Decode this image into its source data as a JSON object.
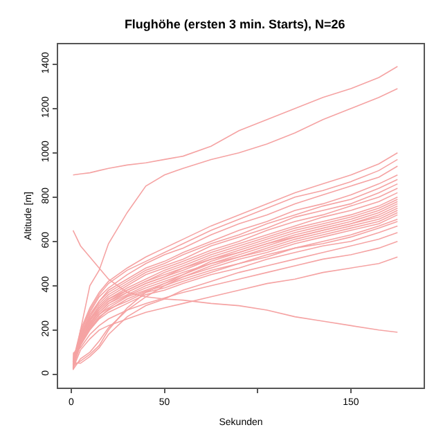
{
  "chart_data": {
    "type": "line",
    "title": "Flughöhe (ersten 3 min. Starts), N=26",
    "xlabel": "Sekunden",
    "ylabel": "Altitude [m]",
    "x": [
      1,
      5,
      10,
      15,
      20,
      30,
      40,
      50,
      60,
      75,
      90,
      105,
      120,
      135,
      150,
      165,
      175
    ],
    "xlim": [
      -7,
      189
    ],
    "xticks": [
      0,
      50,
      {
        "value": 100,
        "label": null
      },
      150
    ],
    "ylim": [
      -60,
      1490
    ],
    "yticks": [
      0,
      200,
      400,
      600,
      800,
      1000,
      1200,
      1400
    ],
    "grid": false,
    "marker": "none",
    "line_style": "solid",
    "series": [
      {
        "color": "#f5a3a3",
        "values": [
          900,
          905,
          910,
          920,
          930,
          945,
          955,
          970,
          985,
          1030,
          1100,
          1150,
          1200,
          1250,
          1290,
          1340,
          1390
        ]
      },
      {
        "color": "#f5a3a3",
        "values": [
          20,
          200,
          400,
          470,
          590,
          730,
          850,
          900,
          930,
          970,
          1000,
          1040,
          1090,
          1150,
          1200,
          1250,
          1290
        ]
      },
      {
        "color": "#f5a3a3",
        "values": [
          650,
          580,
          530,
          480,
          430,
          370,
          350,
          340,
          335,
          320,
          310,
          290,
          260,
          240,
          220,
          200,
          190
        ]
      },
      {
        "color": "#f5a3a3",
        "values": [
          60,
          200,
          300,
          370,
          420,
          480,
          530,
          570,
          610,
          670,
          720,
          770,
          820,
          860,
          900,
          950,
          1000
        ]
      },
      {
        "color": "#f5a3a3",
        "values": [
          45,
          190,
          290,
          360,
          410,
          470,
          510,
          550,
          590,
          650,
          700,
          750,
          800,
          830,
          870,
          920,
          970
        ]
      },
      {
        "color": "#f5a3a3",
        "values": [
          55,
          190,
          280,
          350,
          390,
          450,
          500,
          540,
          570,
          630,
          680,
          720,
          770,
          810,
          850,
          890,
          940
        ]
      },
      {
        "color": "#f5a3a3",
        "values": [
          40,
          180,
          270,
          330,
          380,
          430,
          480,
          510,
          550,
          600,
          650,
          690,
          740,
          770,
          810,
          860,
          900
        ]
      },
      {
        "color": "#f5a3a3",
        "values": [
          35,
          180,
          260,
          330,
          370,
          420,
          470,
          500,
          540,
          590,
          630,
          680,
          720,
          760,
          790,
          840,
          880
        ]
      },
      {
        "color": "#f5a3a3",
        "values": [
          50,
          170,
          260,
          320,
          360,
          410,
          460,
          490,
          520,
          580,
          620,
          660,
          710,
          740,
          770,
          820,
          860
        ]
      },
      {
        "color": "#f5a3a3",
        "values": [
          25,
          170,
          250,
          310,
          350,
          400,
          450,
          480,
          510,
          560,
          600,
          650,
          690,
          720,
          760,
          800,
          840
        ]
      },
      {
        "color": "#f5a3a3",
        "values": [
          65,
          160,
          250,
          300,
          340,
          390,
          430,
          470,
          500,
          550,
          590,
          630,
          670,
          710,
          740,
          780,
          820
        ]
      },
      {
        "color": "#f5a3a3",
        "values": [
          30,
          165,
          240,
          300,
          340,
          380,
          420,
          460,
          490,
          540,
          580,
          620,
          660,
          690,
          720,
          760,
          800
        ]
      },
      {
        "color": "#f5a3a3",
        "values": [
          70,
          160,
          245,
          290,
          330,
          380,
          420,
          450,
          480,
          530,
          570,
          610,
          650,
          680,
          710,
          750,
          790
        ]
      },
      {
        "color": "#f5a3a3",
        "values": [
          28,
          155,
          230,
          290,
          330,
          370,
          410,
          440,
          480,
          520,
          560,
          600,
          640,
          670,
          700,
          740,
          780
        ]
      },
      {
        "color": "#f5a3a3",
        "values": [
          75,
          150,
          235,
          280,
          320,
          370,
          410,
          440,
          470,
          520,
          550,
          590,
          630,
          660,
          690,
          730,
          770
        ]
      },
      {
        "color": "#f5a3a3",
        "values": [
          38,
          60,
          90,
          130,
          200,
          300,
          370,
          410,
          450,
          510,
          550,
          590,
          620,
          650,
          680,
          720,
          760
        ]
      },
      {
        "color": "#f5a3a3",
        "values": [
          80,
          145,
          225,
          280,
          320,
          360,
          400,
          430,
          460,
          500,
          540,
          580,
          620,
          650,
          680,
          710,
          750
        ]
      },
      {
        "color": "#f5a3a3",
        "values": [
          42,
          150,
          220,
          270,
          310,
          355,
          390,
          420,
          450,
          500,
          530,
          570,
          610,
          640,
          670,
          700,
          740
        ]
      },
      {
        "color": "#f5a3a3",
        "values": [
          22,
          70,
          100,
          150,
          210,
          290,
          350,
          400,
          440,
          490,
          530,
          560,
          600,
          630,
          660,
          690,
          730
        ]
      },
      {
        "color": "#f5a3a3",
        "values": [
          85,
          140,
          215,
          270,
          300,
          350,
          380,
          410,
          440,
          480,
          520,
          550,
          590,
          620,
          650,
          680,
          720
        ]
      },
      {
        "color": "#f5a3a3",
        "values": [
          48,
          135,
          210,
          260,
          290,
          340,
          375,
          400,
          430,
          470,
          500,
          540,
          570,
          600,
          630,
          670,
          700
        ]
      },
      {
        "color": "#f5a3a3",
        "values": [
          90,
          140,
          205,
          255,
          295,
          330,
          370,
          390,
          420,
          460,
          500,
          530,
          570,
          590,
          620,
          660,
          690
        ]
      },
      {
        "color": "#f5a3a3",
        "values": [
          33,
          130,
          200,
          250,
          280,
          320,
          360,
          380,
          410,
          450,
          480,
          520,
          550,
          580,
          600,
          640,
          670
        ]
      },
      {
        "color": "#f5a3a3",
        "values": [
          52,
          50,
          80,
          120,
          180,
          260,
          310,
          340,
          380,
          420,
          460,
          490,
          520,
          550,
          580,
          610,
          640
        ]
      },
      {
        "color": "#f5a3a3",
        "values": [
          95,
          120,
          180,
          220,
          250,
          290,
          320,
          345,
          370,
          400,
          430,
          460,
          490,
          520,
          540,
          570,
          600
        ]
      },
      {
        "color": "#f5a3a3",
        "values": [
          27,
          110,
          160,
          200,
          220,
          250,
          280,
          300,
          320,
          350,
          380,
          410,
          430,
          460,
          480,
          500,
          530
        ]
      }
    ]
  }
}
